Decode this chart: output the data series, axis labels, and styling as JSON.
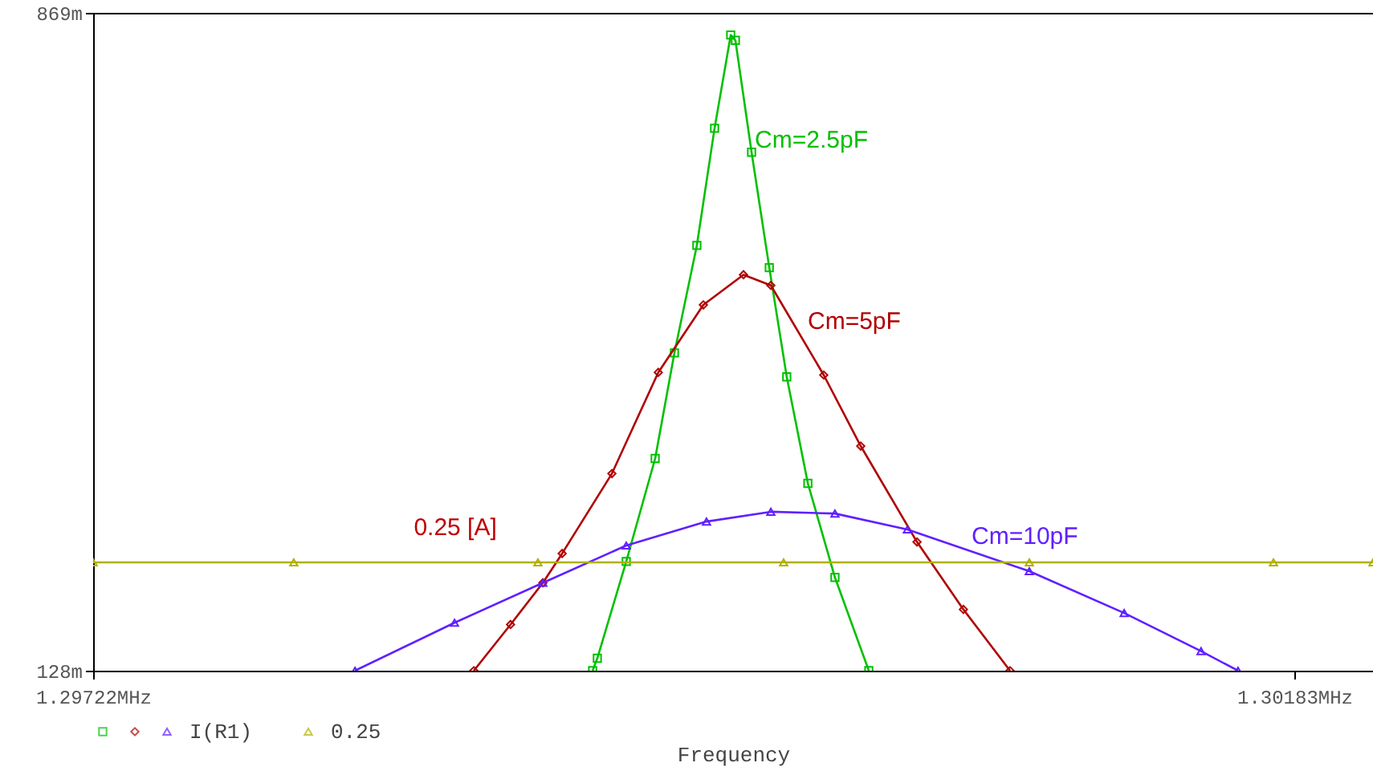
{
  "chart_data": {
    "type": "line",
    "xlabel": "Frequency",
    "legend_title": "I(R1)",
    "legend": "bottom",
    "grid": false,
    "xlim": [
      1.29722,
      1.302132
    ],
    "ylim": [
      128,
      869
    ],
    "xticks": [
      {
        "value": 1.29722,
        "label": "1.29722MHz"
      },
      {
        "value": 1.30183,
        "label": "1.30183MHz"
      }
    ],
    "yticks": [
      {
        "value": 128,
        "label": "128m"
      },
      {
        "value": 869,
        "label": "869m"
      }
    ],
    "annotations": [
      {
        "text": "0.25 [A]",
        "x": 1.29861,
        "y": 250
      }
    ],
    "series": [
      {
        "name": "Cm=2.5pF",
        "color": "#00c000",
        "marker": "square",
        "x": [
          1.299137,
          1.299155,
          1.299266,
          1.299377,
          1.299451,
          1.299537,
          1.299605,
          1.299667,
          1.299685,
          1.299747,
          1.299815,
          1.299882,
          1.299963,
          1.300067,
          1.300197
        ],
        "values": [
          128,
          142,
          251,
          367,
          486,
          607,
          739,
          844,
          838,
          712,
          582,
          459,
          339,
          233,
          128
        ]
      },
      {
        "name": "Cm=5pF",
        "color": "#b00000",
        "marker": "diamond",
        "x": [
          1.298681,
          1.298822,
          1.298946,
          1.29902,
          1.299211,
          1.299389,
          1.299562,
          1.299716,
          1.299821,
          1.300024,
          1.300166,
          1.300382,
          1.30056,
          1.300739
        ],
        "values": [
          128,
          180,
          227,
          260,
          350,
          464,
          540,
          574,
          562,
          461,
          381,
          273,
          197,
          128
        ]
      },
      {
        "name": "Cm=10pF",
        "color": "#6020ff",
        "marker": "triangle",
        "x": [
          1.298225,
          1.298607,
          1.298946,
          1.299266,
          1.299574,
          1.299821,
          1.300067,
          1.300345,
          1.300813,
          1.301177,
          1.301472,
          1.301614
        ],
        "values": [
          128,
          182,
          227,
          269,
          296,
          307,
          305,
          287,
          240,
          193,
          150,
          128
        ]
      },
      {
        "name": "0.25",
        "color": "#b0b000",
        "marker": "triangle",
        "x": [
          1.29722,
          1.29799,
          1.298927,
          1.29987,
          1.300813,
          1.30175,
          1.302132
        ],
        "values": [
          250,
          250,
          250,
          250,
          250,
          250,
          250
        ]
      }
    ]
  }
}
